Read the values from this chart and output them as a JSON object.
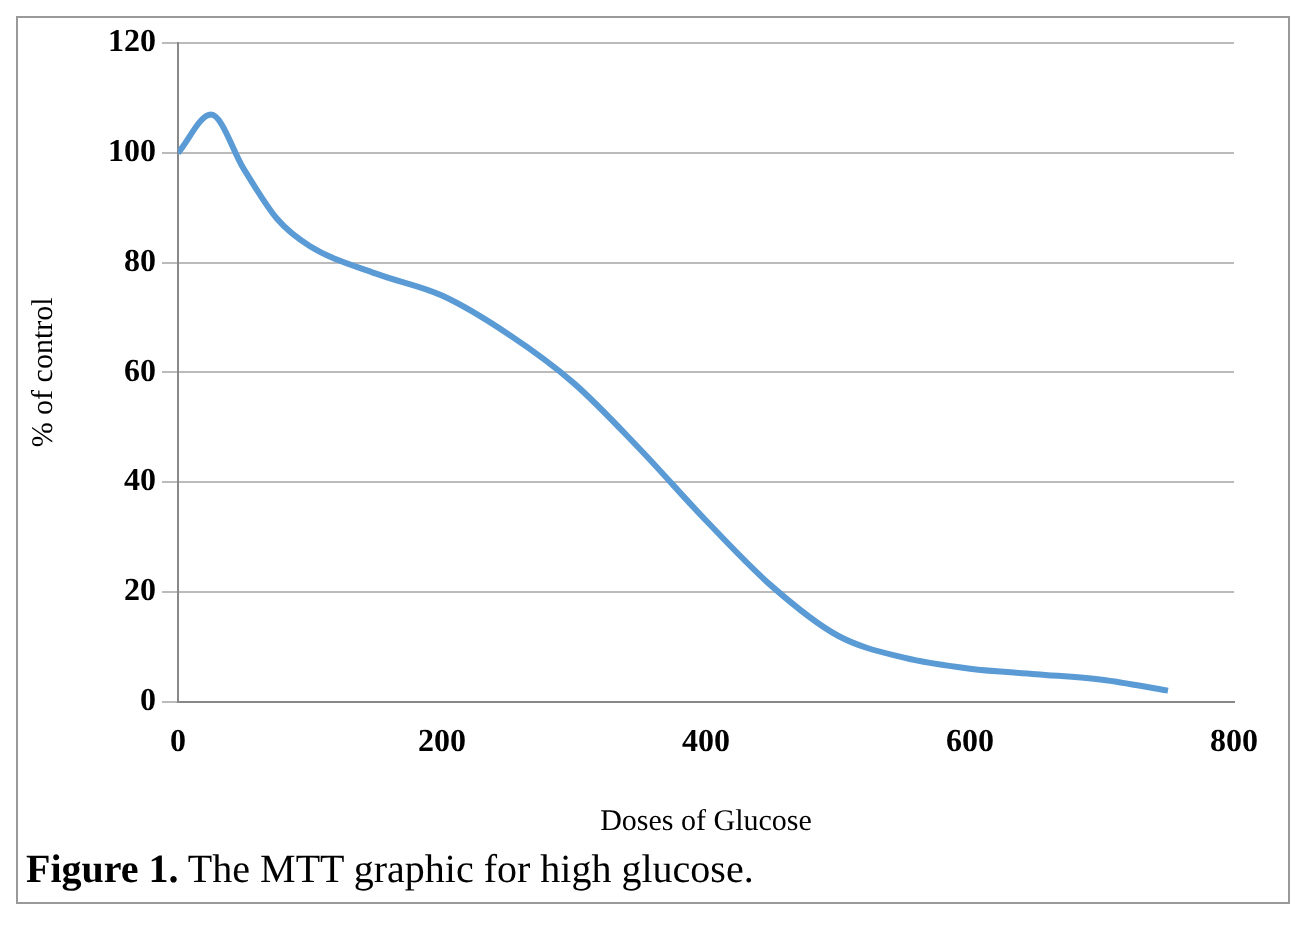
{
  "chart_data": {
    "type": "line",
    "xlabel": "Doses of Glucose",
    "ylabel": "% of control",
    "x": [
      0,
      25,
      50,
      75,
      100,
      150,
      200,
      250,
      300,
      350,
      400,
      450,
      500,
      550,
      600,
      650,
      700,
      750
    ],
    "series": [
      {
        "color": "#5b9bd5",
        "values": [
          100,
          107,
          97,
          88,
          83,
          78,
          74,
          67,
          58,
          46,
          33,
          21,
          12,
          8,
          6,
          5,
          4,
          2
        ]
      }
    ],
    "xlim": [
      0,
      800
    ],
    "xticks": [
      0,
      200,
      400,
      600,
      800
    ],
    "ylim": [
      0,
      120
    ],
    "yticks": [
      0,
      20,
      40,
      60,
      80,
      100,
      120
    ],
    "grid": "y",
    "legend": false,
    "marker": "none",
    "line_style": "solid",
    "annotations": [
      "Figure 1. The MTT graphic for high glucose."
    ]
  }
}
